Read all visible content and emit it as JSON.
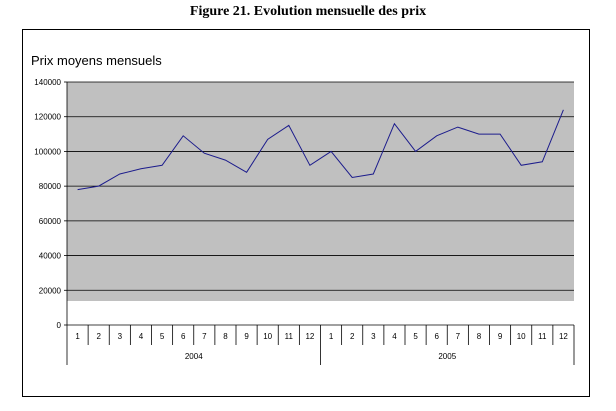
{
  "figure_title": "Figure 21. Evolution mensuelle des prix",
  "chart_data": {
    "type": "line",
    "title": "Prix moyens mensuels",
    "xlabel": "",
    "ylabel": "",
    "ylim": [
      0,
      140000
    ],
    "y_ticks": [
      "0",
      "20000",
      "40000",
      "60000",
      "80000",
      "100000",
      "120000",
      "140000"
    ],
    "x": [
      "1",
      "2",
      "3",
      "4",
      "5",
      "6",
      "7",
      "8",
      "9",
      "10",
      "11",
      "12",
      "1",
      "2",
      "3",
      "4",
      "5",
      "6",
      "7",
      "8",
      "9",
      "10",
      "11",
      "12"
    ],
    "groups": [
      {
        "label": "2004",
        "count": 12
      },
      {
        "label": "2005",
        "count": 12
      }
    ],
    "series": [
      {
        "color": "#1c1c8c",
        "values": [
          78000,
          80000,
          87000,
          90000,
          92000,
          109000,
          99000,
          95000,
          88000,
          107000,
          115000,
          92000,
          100000,
          85000,
          87000,
          116000,
          100000,
          109000,
          114000,
          110000,
          110000,
          92000,
          94000,
          124000
        ]
      }
    ],
    "plot_background": "#c0c0c0",
    "grid": true
  }
}
